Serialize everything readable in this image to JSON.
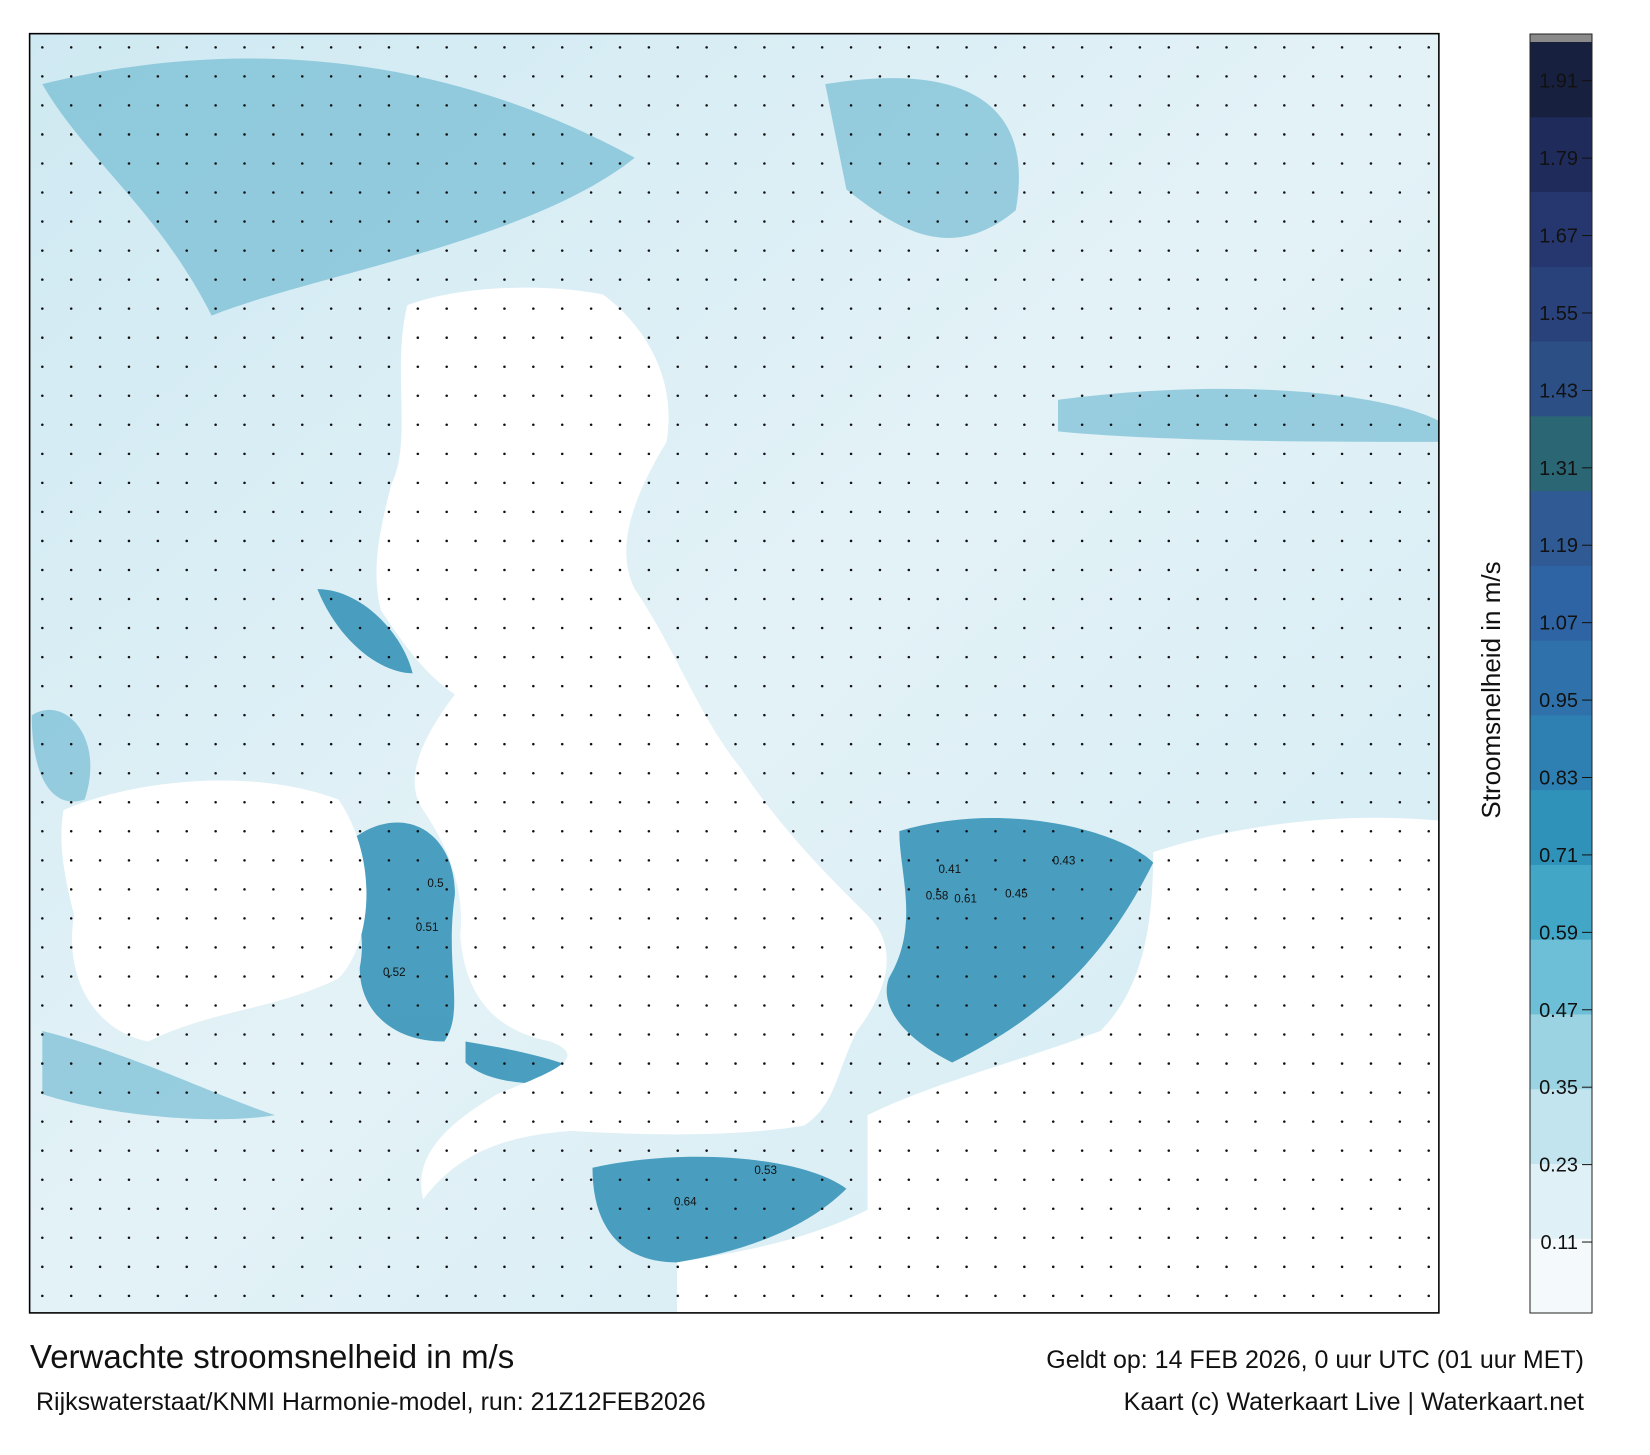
{
  "header": {
    "title": "Verwachte stroomsnelheid in m/s",
    "subtitle": "Rijkswaterstaat/KNMI Harmonie-model, run: 21Z12FEB2026",
    "valid_time": "Geldt op: 14 FEB 2026, 0 uur UTC (01 uur MET)",
    "credit": "Kaart (c) Waterkaart Live | Waterkaart.net"
  },
  "map": {
    "value_labels": [
      0.64,
      0.61,
      0.58,
      0.51,
      0.52,
      0.53,
      0.45,
      0.5,
      0.43,
      0.41
    ]
  },
  "colorbar": {
    "label": "Stroomsnelheid in m/s",
    "ylim": [
      0,
      1.97
    ],
    "yticks": [
      0.11,
      0.23,
      0.35,
      0.47,
      0.59,
      0.71,
      0.83,
      0.95,
      1.07,
      1.19,
      1.31,
      1.43,
      1.55,
      1.67,
      1.79,
      1.91
    ],
    "colors": [
      "#f4fafc",
      "#dff1f6",
      "#c2e4ee",
      "#9bd3e3",
      "#6cbfd6",
      "#42a7c6",
      "#2f93b9",
      "#2d80b1",
      "#2f72ab",
      "#2e64a3",
      "#2f5a93",
      "#2b6674",
      "#2c4f86",
      "#29427b",
      "#25376e",
      "#1f2b5a",
      "#17203f"
    ]
  }
}
